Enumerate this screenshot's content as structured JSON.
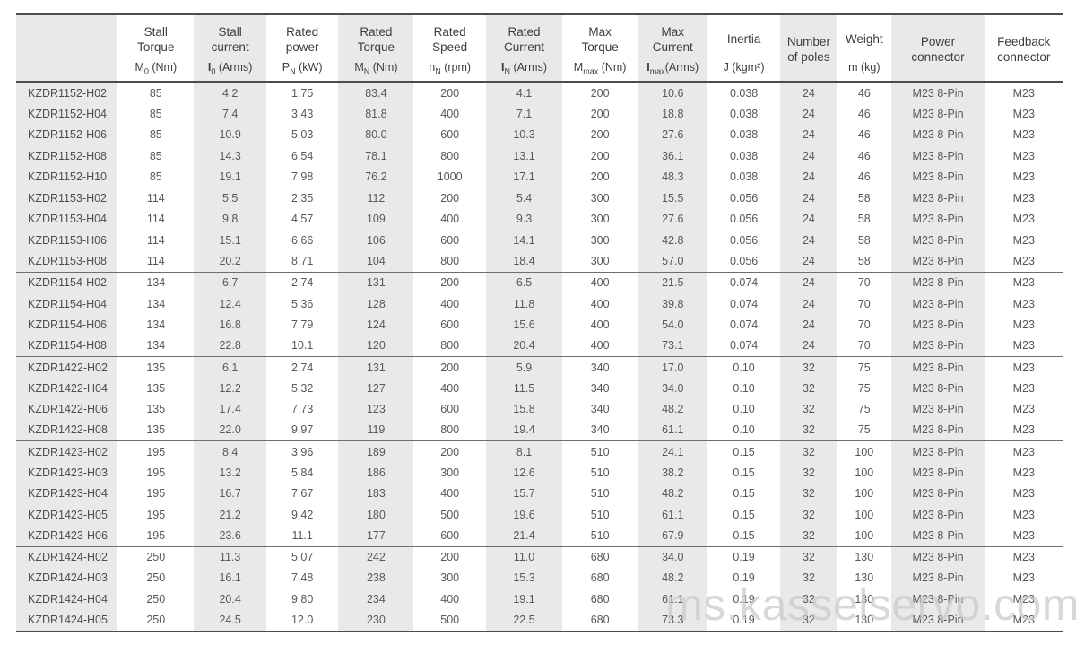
{
  "watermark": "ms.kasselservo.com",
  "colors": {
    "column_shade": "#e9e9e9",
    "border_dark": "#4c4c4c",
    "group_separator": "#6e6e6e",
    "header_text": "#3d3d3d",
    "cell_text": "#585858",
    "watermark_color": "#c6cacd"
  },
  "table": {
    "headers": [
      {
        "label": "",
        "symbol": null
      },
      {
        "label": "Stall\nTorque",
        "symbol": {
          "base": "M",
          "bold": false,
          "sub": "0",
          "unit": " (Nm)"
        }
      },
      {
        "label": "Stall\ncurrent",
        "symbol": {
          "base": "I",
          "bold": true,
          "sub": "0",
          "unit": " (Arms)"
        }
      },
      {
        "label": "Rated\npower",
        "symbol": {
          "base": "P",
          "bold": false,
          "sub": "N",
          "unit": " (kW)"
        }
      },
      {
        "label": "Rated\nTorque",
        "symbol": {
          "base": "M",
          "bold": false,
          "sub": "N",
          "unit": " (Nm)"
        }
      },
      {
        "label": "Rated\nSpeed",
        "symbol": {
          "base": "n",
          "bold": false,
          "sub": "N",
          "unit": " (rpm)"
        }
      },
      {
        "label": "Rated\nCurrent",
        "symbol": {
          "base": "I",
          "bold": true,
          "sub": "N",
          "unit": " (Arms)"
        }
      },
      {
        "label": "Max\nTorque",
        "symbol": {
          "base": "M",
          "bold": false,
          "sub": "max",
          "unit": " (Nm)"
        }
      },
      {
        "label": "Max\nCurrent",
        "symbol": {
          "base": "I",
          "bold": true,
          "sub": "max",
          "unit": "(Arms)"
        }
      },
      {
        "label": "Inertia",
        "symbol": {
          "base": "J",
          "bold": false,
          "sub": "",
          "unit": " (kgm²)"
        }
      },
      {
        "label": "Number\nof poles",
        "symbol": null
      },
      {
        "label": "Weight",
        "symbol": {
          "base": "m",
          "bold": false,
          "sub": "",
          "unit": " (kg)"
        }
      },
      {
        "label": "Power\nconnector",
        "symbol": null
      },
      {
        "label": "Feedback\nconnector",
        "symbol": null
      }
    ],
    "groups": [
      {
        "rows": [
          {
            "model": "KZDR1152-H02",
            "values": [
              "85",
              "4.2",
              "1.75",
              "83.4",
              "200",
              "4.1",
              "200",
              "10.6",
              "0.038",
              "24",
              "46",
              "M23 8-Pin",
              "M23"
            ]
          },
          {
            "model": "KZDR1152-H04",
            "values": [
              "85",
              "7.4",
              "3.43",
              "81.8",
              "400",
              "7.1",
              "200",
              "18.8",
              "0.038",
              "24",
              "46",
              "M23 8-Pin",
              "M23"
            ]
          },
          {
            "model": "KZDR1152-H06",
            "values": [
              "85",
              "10.9",
              "5.03",
              "80.0",
              "600",
              "10.3",
              "200",
              "27.6",
              "0.038",
              "24",
              "46",
              "M23 8-Pin",
              "M23"
            ]
          },
          {
            "model": "KZDR1152-H08",
            "values": [
              "85",
              "14.3",
              "6.54",
              "78.1",
              "800",
              "13.1",
              "200",
              "36.1",
              "0.038",
              "24",
              "46",
              "M23 8-Pin",
              "M23"
            ]
          },
          {
            "model": "KZDR1152-H10",
            "values": [
              "85",
              "19.1",
              "7.98",
              "76.2",
              "1000",
              "17.1",
              "200",
              "48.3",
              "0.038",
              "24",
              "46",
              "M23 8-Pin",
              "M23"
            ]
          }
        ]
      },
      {
        "rows": [
          {
            "model": "KZDR1153-H02",
            "values": [
              "114",
              "5.5",
              "2.35",
              "112",
              "200",
              "5.4",
              "300",
              "15.5",
              "0.056",
              "24",
              "58",
              "M23 8-Pin",
              "M23"
            ]
          },
          {
            "model": "KZDR1153-H04",
            "values": [
              "114",
              "9.8",
              "4.57",
              "109",
              "400",
              "9.3",
              "300",
              "27.6",
              "0.056",
              "24",
              "58",
              "M23 8-Pin",
              "M23"
            ]
          },
          {
            "model": "KZDR1153-H06",
            "values": [
              "114",
              "15.1",
              "6.66",
              "106",
              "600",
              "14.1",
              "300",
              "42.8",
              "0.056",
              "24",
              "58",
              "M23 8-Pin",
              "M23"
            ]
          },
          {
            "model": "KZDR1153-H08",
            "values": [
              "114",
              "20.2",
              "8.71",
              "104",
              "800",
              "18.4",
              "300",
              "57.0",
              "0.056",
              "24",
              "58",
              "M23 8-Pin",
              "M23"
            ]
          }
        ]
      },
      {
        "rows": [
          {
            "model": "KZDR1154-H02",
            "values": [
              "134",
              "6.7",
              "2.74",
              "131",
              "200",
              "6.5",
              "400",
              "21.5",
              "0.074",
              "24",
              "70",
              "M23 8-Pin",
              "M23"
            ]
          },
          {
            "model": "KZDR1154-H04",
            "values": [
              "134",
              "12.4",
              "5.36",
              "128",
              "400",
              "11.8",
              "400",
              "39.8",
              "0.074",
              "24",
              "70",
              "M23 8-Pin",
              "M23"
            ]
          },
          {
            "model": "KZDR1154-H06",
            "values": [
              "134",
              "16.8",
              "7.79",
              "124",
              "600",
              "15.6",
              "400",
              "54.0",
              "0.074",
              "24",
              "70",
              "M23 8-Pin",
              "M23"
            ]
          },
          {
            "model": "KZDR1154-H08",
            "values": [
              "134",
              "22.8",
              "10.1",
              "120",
              "800",
              "20.4",
              "400",
              "73.1",
              "0.074",
              "24",
              "70",
              "M23 8-Pin",
              "M23"
            ]
          }
        ]
      },
      {
        "rows": [
          {
            "model": "KZDR1422-H02",
            "values": [
              "135",
              "6.1",
              "2.74",
              "131",
              "200",
              "5.9",
              "340",
              "17.0",
              "0.10",
              "32",
              "75",
              "M23 8-Pin",
              "M23"
            ]
          },
          {
            "model": "KZDR1422-H04",
            "values": [
              "135",
              "12.2",
              "5.32",
              "127",
              "400",
              "11.5",
              "340",
              "34.0",
              "0.10",
              "32",
              "75",
              "M23 8-Pin",
              "M23"
            ]
          },
          {
            "model": "KZDR1422-H06",
            "values": [
              "135",
              "17.4",
              "7.73",
              "123",
              "600",
              "15.8",
              "340",
              "48.2",
              "0.10",
              "32",
              "75",
              "M23 8-Pin",
              "M23"
            ]
          },
          {
            "model": "KZDR1422-H08",
            "values": [
              "135",
              "22.0",
              "9.97",
              "119",
              "800",
              "19.4",
              "340",
              "61.1",
              "0.10",
              "32",
              "75",
              "M23 8-Pin",
              "M23"
            ]
          }
        ]
      },
      {
        "rows": [
          {
            "model": "KZDR1423-H02",
            "values": [
              "195",
              "8.4",
              "3.96",
              "189",
              "200",
              "8.1",
              "510",
              "24.1",
              "0.15",
              "32",
              "100",
              "M23 8-Pin",
              "M23"
            ]
          },
          {
            "model": "KZDR1423-H03",
            "values": [
              "195",
              "13.2",
              "5.84",
              "186",
              "300",
              "12.6",
              "510",
              "38.2",
              "0.15",
              "32",
              "100",
              "M23 8-Pin",
              "M23"
            ]
          },
          {
            "model": "KZDR1423-H04",
            "values": [
              "195",
              "16.7",
              "7.67",
              "183",
              "400",
              "15.7",
              "510",
              "48.2",
              "0.15",
              "32",
              "100",
              "M23 8-Pin",
              "M23"
            ]
          },
          {
            "model": "KZDR1423-H05",
            "values": [
              "195",
              "21.2",
              "9.42",
              "180",
              "500",
              "19.6",
              "510",
              "61.1",
              "0.15",
              "32",
              "100",
              "M23 8-Pin",
              "M23"
            ]
          },
          {
            "model": "KZDR1423-H06",
            "values": [
              "195",
              "23.6",
              "11.1",
              "177",
              "600",
              "21.4",
              "510",
              "67.9",
              "0.15",
              "32",
              "100",
              "M23 8-Pin",
              "M23"
            ]
          }
        ]
      },
      {
        "rows": [
          {
            "model": "KZDR1424-H02",
            "values": [
              "250",
              "11.3",
              "5.07",
              "242",
              "200",
              "11.0",
              "680",
              "34.0",
              "0.19",
              "32",
              "130",
              "M23 8-Pin",
              "M23"
            ]
          },
          {
            "model": "KZDR1424-H03",
            "values": [
              "250",
              "16.1",
              "7.48",
              "238",
              "300",
              "15.3",
              "680",
              "48.2",
              "0.19",
              "32",
              "130",
              "M23 8-Pin",
              "M23"
            ]
          },
          {
            "model": "KZDR1424-H04",
            "values": [
              "250",
              "20.4",
              "9.80",
              "234",
              "400",
              "19.1",
              "680",
              "61.1",
              "0.19",
              "32",
              "130",
              "M23 8-Pin",
              "M23"
            ]
          },
          {
            "model": "KZDR1424-H05",
            "values": [
              "250",
              "24.5",
              "12.0",
              "230",
              "500",
              "22.5",
              "680",
              "73.3",
              "0.19",
              "32",
              "130",
              "M23 8-Pin",
              "M23"
            ]
          }
        ]
      }
    ]
  }
}
